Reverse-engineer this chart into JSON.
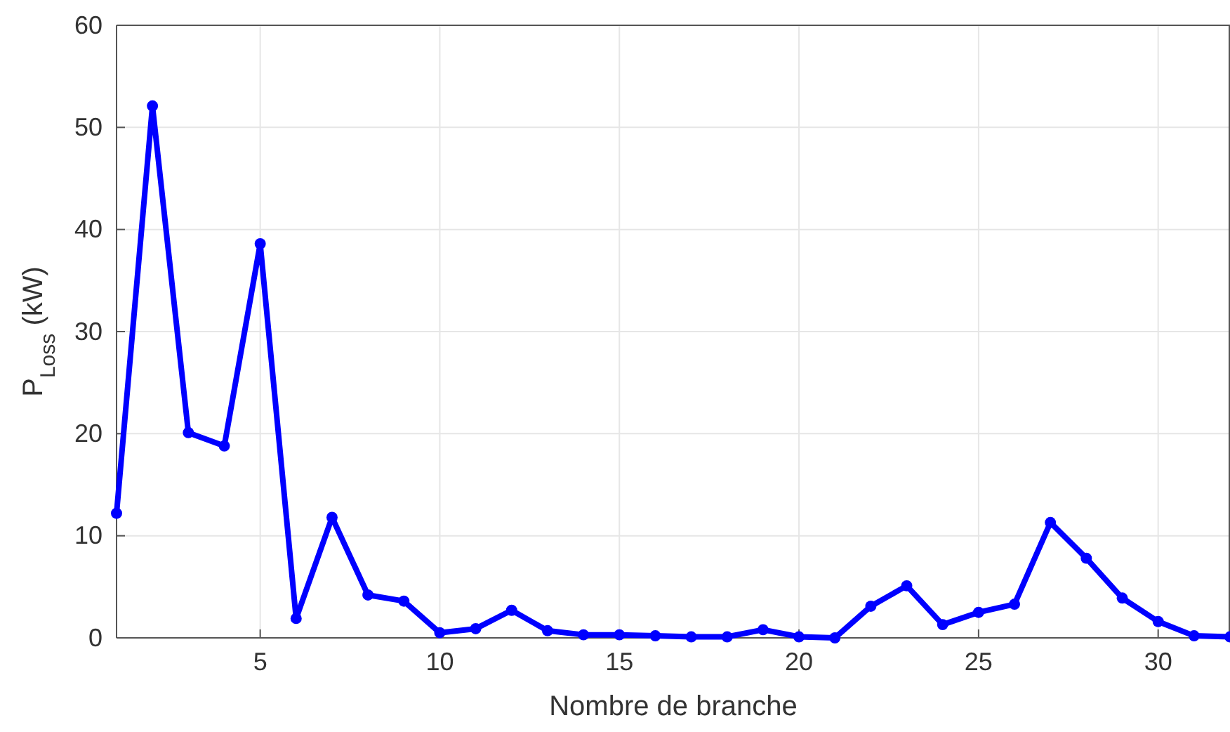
{
  "chart_data": {
    "type": "line",
    "xlabel": "Nombre de branche",
    "ylabel": "P$_{Loss}$ (kW)",
    "x": [
      1,
      2,
      3,
      4,
      5,
      6,
      7,
      8,
      9,
      10,
      11,
      12,
      13,
      14,
      15,
      16,
      17,
      18,
      19,
      20,
      21,
      22,
      23,
      24,
      25,
      26,
      27,
      28,
      29,
      30,
      31,
      32
    ],
    "series": [
      {
        "color": "#0000ff",
        "values": [
          12.2,
          52.1,
          20.1,
          18.8,
          38.6,
          1.9,
          11.8,
          4.2,
          3.6,
          0.5,
          0.9,
          2.7,
          0.7,
          0.3,
          0.3,
          0.2,
          0.1,
          0.1,
          0.8,
          0.1,
          0,
          3.1,
          5.1,
          1.3,
          2.5,
          3.3,
          11.3,
          7.8,
          3.9,
          1.6,
          0.2,
          0.1
        ]
      }
    ],
    "xlim": [
      1,
      32
    ],
    "xticks": [
      5,
      10,
      15,
      20,
      25,
      30
    ],
    "ylim": [
      0,
      60
    ],
    "yticks": [
      0,
      10,
      20,
      30,
      40,
      50,
      60
    ],
    "grid": true,
    "marker": "circle",
    "line_style": "solid"
  }
}
